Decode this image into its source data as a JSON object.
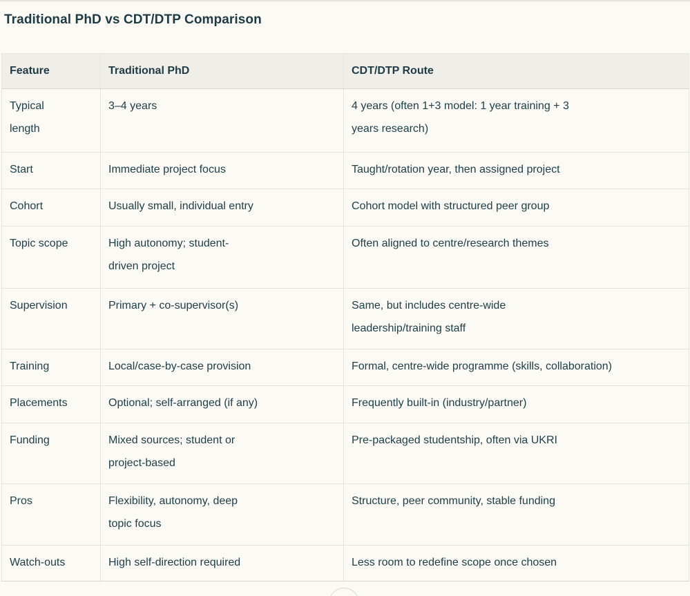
{
  "page": {
    "title": "Traditional PhD vs CDT/DTP Comparison"
  },
  "colors": {
    "background": "#FBFAF5",
    "header_background": "#F0EEE9",
    "border": "#E5E3DC",
    "text": "#1E3A44"
  },
  "table": {
    "headers": [
      "Feature",
      "Traditional PhD",
      "CDT/DTP Route"
    ],
    "rows": [
      [
        "Typical\nlength",
        "3–4 years",
        "4 years (often 1+3 model: 1 year training + 3\nyears research)"
      ],
      [
        "Start",
        "Immediate project focus",
        "Taught/rotation year, then assigned project"
      ],
      [
        "Cohort",
        "Usually small, individual entry",
        "Cohort model with structured peer group"
      ],
      [
        "Topic scope",
        "High autonomy; student-\ndriven project",
        "Often aligned to centre/research themes"
      ],
      [
        "Supervision",
        "Primary + co-supervisor(s)",
        "Same, but includes centre-wide\nleadership/training staff"
      ],
      [
        "Training",
        "Local/case-by-case provision",
        "Formal, centre-wide programme (skills, collaboration)"
      ],
      [
        "Placements",
        "Optional; self-arranged (if any)",
        "Frequently built-in (industry/partner)"
      ],
      [
        "Funding",
        "Mixed sources; student or\nproject-based",
        "Pre-packaged studentship, often via UKRI"
      ],
      [
        "Pros",
        "Flexibility, autonomy, deep\ntopic focus",
        "Structure, peer community, stable funding"
      ],
      [
        "Watch-outs",
        "High self-direction required",
        "Less room to redefine scope once chosen"
      ]
    ]
  }
}
